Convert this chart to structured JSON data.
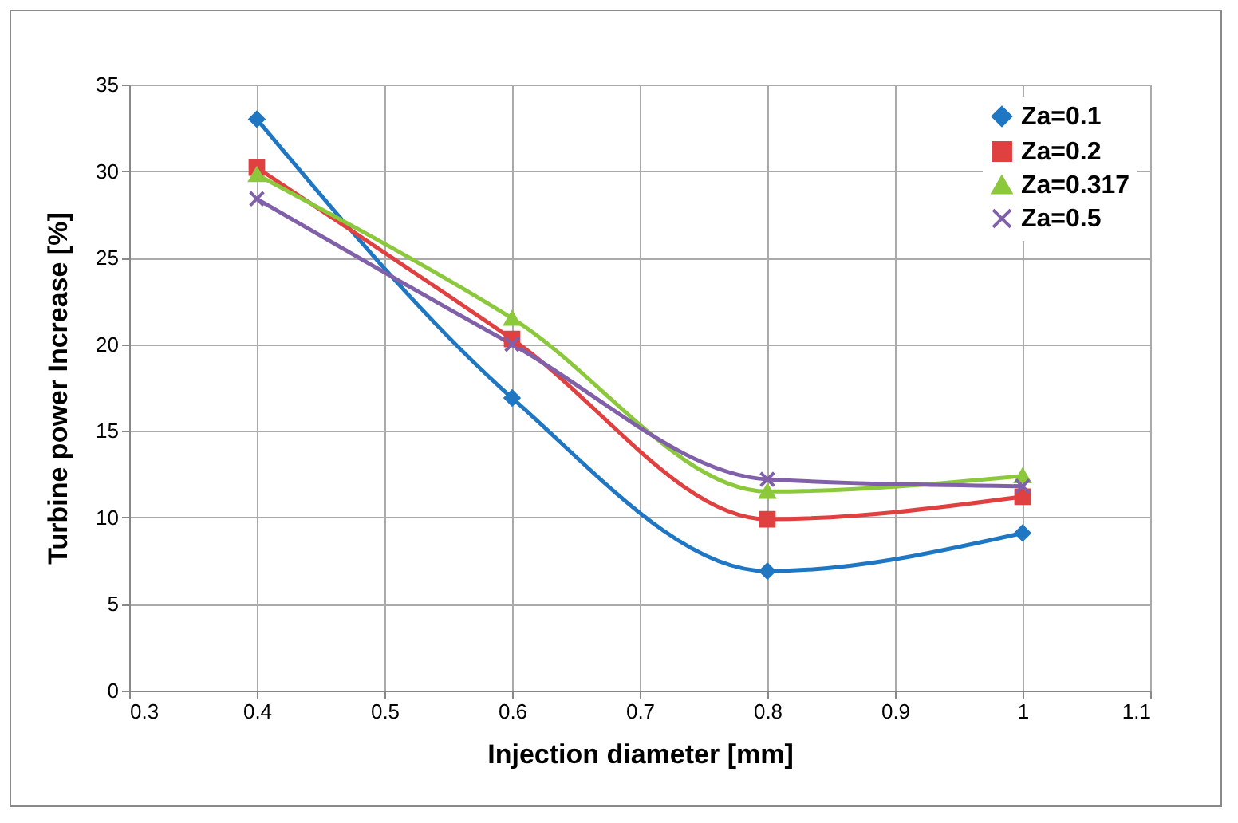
{
  "chart_data": {
    "type": "line",
    "xlabel": "Injection diameter [mm]",
    "ylabel": "Turbine power Increase [%]",
    "x": [
      0.4,
      0.6,
      0.8,
      1
    ],
    "series": [
      {
        "name": "Za=0.1",
        "color": "#1f77c4",
        "marker": "diamond",
        "values": [
          33,
          16.9,
          6.9,
          9.1
        ]
      },
      {
        "name": "Za=0.2",
        "color": "#e04040",
        "marker": "square",
        "values": [
          30.2,
          20.3,
          9.9,
          11.2
        ]
      },
      {
        "name": "Za=0.317",
        "color": "#8cc83c",
        "marker": "triangle",
        "values": [
          29.8,
          21.5,
          11.5,
          12.4
        ]
      },
      {
        "name": "Za=0.5",
        "color": "#8060a8",
        "marker": "cross",
        "values": [
          28.4,
          20.0,
          12.2,
          11.8
        ]
      }
    ],
    "xlim": [
      0.3,
      1.1
    ],
    "xticks": [
      0.3,
      0.4,
      0.5,
      0.6,
      0.7,
      0.8,
      0.9,
      1,
      1.1
    ],
    "ylim": [
      0,
      35
    ],
    "yticks": [
      0,
      5,
      10,
      15,
      20,
      25,
      30,
      35
    ],
    "grid": true,
    "legend": "top right",
    "line_style": "solid"
  }
}
